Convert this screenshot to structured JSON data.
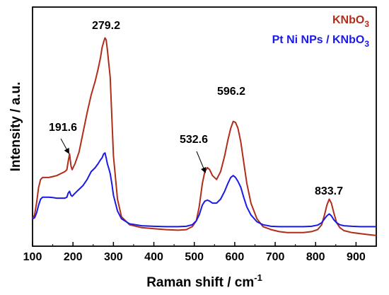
{
  "chart_data": {
    "type": "line",
    "xlabel": "Raman shift / cm",
    "xlabel_sup": "-1",
    "ylabel": "Intensity / a.u.",
    "xlim": [
      100,
      950
    ],
    "ylim": [
      0,
      1
    ],
    "x_ticks": [
      100,
      200,
      300,
      400,
      500,
      600,
      700,
      800,
      900
    ],
    "y_ticks_shown": false,
    "grid": false,
    "legend_position": "top-right",
    "series": [
      {
        "name": "KNbO",
        "name_sub": "3",
        "color": "#b02d1a",
        "x": [
          100,
          105,
          110,
          115,
          120,
          125,
          130,
          140,
          150,
          160,
          170,
          180,
          185,
          188,
          191.6,
          195,
          198,
          205,
          215,
          225,
          235,
          245,
          255,
          262,
          268,
          272,
          276,
          279.2,
          282,
          285,
          288,
          292,
          296,
          300,
          310,
          320,
          340,
          370,
          400,
          430,
          460,
          480,
          495,
          505,
          512,
          520,
          526,
          532.6,
          538,
          545,
          555,
          565,
          575,
          583,
          590,
          596.2,
          602,
          608,
          615,
          622,
          630,
          640,
          655,
          670,
          690,
          710,
          730,
          750,
          770,
          790,
          805,
          815,
          822,
          828,
          833.7,
          839,
          845,
          852,
          860,
          870,
          890,
          910,
          930,
          950
        ],
        "y": [
          0.06,
          0.08,
          0.14,
          0.22,
          0.26,
          0.27,
          0.27,
          0.27,
          0.275,
          0.28,
          0.29,
          0.3,
          0.31,
          0.35,
          0.39,
          0.33,
          0.31,
          0.34,
          0.4,
          0.5,
          0.6,
          0.69,
          0.76,
          0.82,
          0.88,
          0.93,
          0.96,
          0.98,
          0.97,
          0.92,
          0.86,
          0.78,
          0.58,
          0.38,
          0.16,
          0.07,
          0.03,
          0.015,
          0.01,
          0.005,
          0.002,
          0.005,
          0.02,
          0.05,
          0.12,
          0.24,
          0.3,
          0.32,
          0.31,
          0.28,
          0.26,
          0.3,
          0.38,
          0.46,
          0.52,
          0.555,
          0.55,
          0.52,
          0.45,
          0.35,
          0.24,
          0.14,
          0.06,
          0.02,
          0.005,
          -0.005,
          -0.01,
          -0.01,
          -0.01,
          -0.005,
          0.005,
          0.03,
          0.08,
          0.13,
          0.16,
          0.14,
          0.09,
          0.04,
          0.015,
          0.0,
          -0.01,
          -0.015,
          -0.02,
          -0.025
        ]
      },
      {
        "name": "Pt Ni NPs / KNbO",
        "name_sub": "3",
        "color": "#1a1ae6",
        "x": [
          100,
          105,
          110,
          115,
          120,
          125,
          130,
          140,
          150,
          160,
          170,
          180,
          185,
          188,
          191.6,
          195,
          198,
          205,
          215,
          225,
          235,
          245,
          255,
          262,
          268,
          272,
          276,
          279.2,
          282,
          285,
          288,
          292,
          296,
          300,
          310,
          320,
          340,
          370,
          400,
          430,
          460,
          480,
          495,
          505,
          512,
          520,
          526,
          532.6,
          538,
          545,
          555,
          565,
          575,
          583,
          590,
          596.2,
          602,
          608,
          615,
          622,
          630,
          640,
          655,
          670,
          690,
          710,
          730,
          750,
          770,
          790,
          805,
          815,
          822,
          828,
          833.7,
          839,
          845,
          852,
          860,
          870,
          890,
          910,
          930,
          950
        ],
        "y": [
          0.06,
          0.065,
          0.09,
          0.13,
          0.16,
          0.17,
          0.17,
          0.17,
          0.168,
          0.165,
          0.165,
          0.165,
          0.17,
          0.19,
          0.2,
          0.18,
          0.175,
          0.19,
          0.21,
          0.23,
          0.26,
          0.3,
          0.32,
          0.34,
          0.36,
          0.37,
          0.39,
          0.395,
          0.37,
          0.34,
          0.32,
          0.29,
          0.24,
          0.18,
          0.1,
          0.06,
          0.035,
          0.025,
          0.022,
          0.02,
          0.02,
          0.022,
          0.03,
          0.05,
          0.08,
          0.13,
          0.15,
          0.155,
          0.15,
          0.14,
          0.14,
          0.16,
          0.2,
          0.24,
          0.27,
          0.28,
          0.27,
          0.25,
          0.22,
          0.17,
          0.12,
          0.08,
          0.045,
          0.03,
          0.022,
          0.02,
          0.02,
          0.02,
          0.02,
          0.022,
          0.028,
          0.04,
          0.06,
          0.075,
          0.085,
          0.075,
          0.055,
          0.04,
          0.03,
          0.025,
          0.022,
          0.02,
          0.02,
          0.02
        ]
      }
    ],
    "annotations": [
      {
        "text": "279.2",
        "x": 279.2
      },
      {
        "text": "191.6",
        "x": 191.6
      },
      {
        "text": "532.6",
        "x": 532.6
      },
      {
        "text": "596.2",
        "x": 596.2
      },
      {
        "text": "833.7",
        "x": 833.7
      }
    ]
  }
}
